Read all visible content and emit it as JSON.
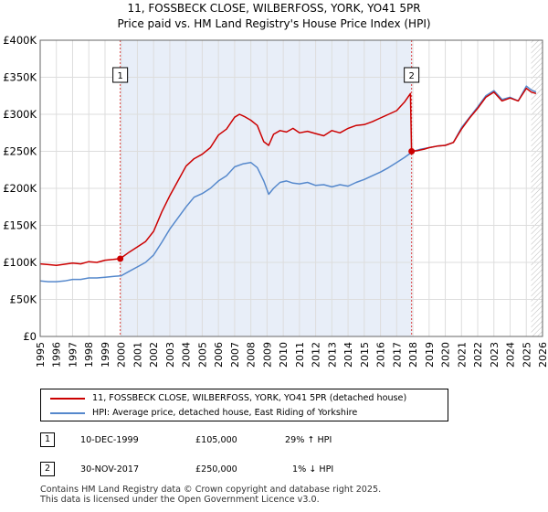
{
  "header": {
    "title_line1": "11, FOSSBECK CLOSE, WILBERFOSS, YORK, YO41 5PR",
    "title_line2": "Price paid vs. HM Land Registry's House Price Index (HPI)"
  },
  "chart_data": {
    "type": "line",
    "xlim": [
      1995,
      2026
    ],
    "ylim": [
      0,
      400000
    ],
    "y_ticks": [
      0,
      50000,
      100000,
      150000,
      200000,
      250000,
      300000,
      350000,
      400000
    ],
    "y_tick_labels": [
      "£0",
      "£50K",
      "£100K",
      "£150K",
      "£200K",
      "£250K",
      "£300K",
      "£350K",
      "£400K"
    ],
    "x_ticks": [
      1995,
      1996,
      1997,
      1998,
      1999,
      2000,
      2001,
      2002,
      2003,
      2004,
      2005,
      2006,
      2007,
      2008,
      2009,
      2010,
      2011,
      2012,
      2013,
      2014,
      2015,
      2016,
      2017,
      2018,
      2019,
      2020,
      2021,
      2022,
      2023,
      2024,
      2025,
      2026
    ],
    "x_tick_labels": [
      "1995",
      "1996",
      "1997",
      "1998",
      "1999",
      "2000",
      "2001",
      "2002",
      "2003",
      "2004",
      "2005",
      "2006",
      "2007",
      "2008",
      "2009",
      "2010",
      "2011",
      "2012",
      "2013",
      "2014",
      "2015",
      "2016",
      "2017",
      "2018",
      "2019",
      "2020",
      "2021",
      "2022",
      "2023",
      "2024",
      "2025",
      "2026"
    ],
    "grid": true,
    "shaded_region": [
      1999.94,
      2017.92
    ],
    "hatched_from": 2025.3,
    "series": [
      {
        "name": "11, FOSSBECK CLOSE, WILBERFOSS, YORK, YO41 5PR (detached house)",
        "color": "#cc0000",
        "x": [
          1995,
          1995.5,
          1996,
          1996.5,
          1997,
          1997.5,
          1998,
          1998.5,
          1999,
          1999.5,
          1999.94,
          2000.5,
          2001,
          2001.5,
          2002,
          2002.5,
          2003,
          2003.5,
          2004,
          2004.5,
          2005,
          2005.5,
          2006,
          2006.5,
          2007,
          2007.3,
          2007.6,
          2008,
          2008.4,
          2008.8,
          2009.1,
          2009.4,
          2009.8,
          2010.2,
          2010.6,
          2011,
          2011.5,
          2012,
          2012.5,
          2013,
          2013.5,
          2014,
          2014.5,
          2015,
          2015.5,
          2016,
          2016.5,
          2017,
          2017.5,
          2017.85,
          2017.92
        ],
        "y": [
          98000,
          97000,
          96000,
          97500,
          99000,
          98000,
          101000,
          100000,
          103000,
          104000,
          105000,
          114000,
          121000,
          128000,
          142000,
          168000,
          190000,
          210000,
          230000,
          240000,
          246000,
          255000,
          272000,
          280000,
          296000,
          300000,
          297000,
          292000,
          285000,
          263000,
          258000,
          273000,
          278000,
          276000,
          281000,
          275000,
          277000,
          274000,
          271000,
          278000,
          275000,
          281000,
          285000,
          286000,
          290000,
          295000,
          300000,
          305000,
          317000,
          328000,
          250000
        ]
      },
      {
        "name": "11, FOSSBECK CLOSE, WILBERFOSS, YORK, YO41 5PR (detached house)",
        "color": "#cc0000",
        "x": [
          2017.92,
          2018.3,
          2018.7,
          2019,
          2019.5,
          2020,
          2020.5,
          2021,
          2021.5,
          2022,
          2022.5,
          2023,
          2023.5,
          2024,
          2024.5,
          2025,
          2025.3,
          2025.6
        ],
        "y": [
          250000,
          251000,
          253000,
          255000,
          257000,
          258000,
          262000,
          280000,
          295000,
          308000,
          323000,
          330000,
          318000,
          322000,
          318000,
          335000,
          330000,
          328000
        ]
      },
      {
        "name": "HPI: Average price, detached house, East Riding of Yorkshire",
        "color": "#5588cc",
        "x": [
          1995,
          1995.5,
          1996,
          1996.5,
          1997,
          1997.5,
          1998,
          1998.5,
          1999,
          1999.5,
          2000,
          2000.5,
          2001,
          2001.5,
          2002,
          2002.5,
          2003,
          2003.5,
          2004,
          2004.5,
          2005,
          2005.5,
          2006,
          2006.5,
          2007,
          2007.5,
          2008,
          2008.4,
          2008.8,
          2009.1,
          2009.4,
          2009.8,
          2010.2,
          2010.6,
          2011,
          2011.5,
          2012,
          2012.5,
          2013,
          2013.5,
          2014,
          2014.5,
          2015,
          2015.5,
          2016,
          2016.5,
          2017,
          2017.5,
          2018,
          2018.5,
          2019,
          2019.5,
          2020,
          2020.5,
          2021,
          2021.5,
          2022,
          2022.5,
          2023,
          2023.5,
          2024,
          2024.5,
          2025,
          2025.3,
          2025.6
        ],
        "y": [
          75000,
          74000,
          74000,
          75000,
          77000,
          77000,
          79000,
          79000,
          80000,
          81000,
          82000,
          88000,
          94000,
          100000,
          110000,
          127000,
          145000,
          160000,
          175000,
          188000,
          193000,
          200000,
          210000,
          217000,
          229000,
          233000,
          235000,
          228000,
          210000,
          192000,
          200000,
          208000,
          210000,
          207000,
          206000,
          208000,
          204000,
          205000,
          202000,
          205000,
          203000,
          208000,
          212000,
          217000,
          222000,
          228000,
          235000,
          242000,
          250000,
          253000,
          255000,
          257000,
          258000,
          262000,
          282000,
          296000,
          310000,
          325000,
          332000,
          320000,
          323000,
          318000,
          338000,
          333000,
          330000
        ]
      }
    ],
    "markers": [
      {
        "x": 1999.94,
        "y": 105000,
        "label": "1"
      },
      {
        "x": 2017.92,
        "y": 250000,
        "label": "2"
      }
    ]
  },
  "legend": {
    "items": [
      {
        "label": "11, FOSSBECK CLOSE, WILBERFOSS, YORK, YO41 5PR (detached house)",
        "color": "#cc0000"
      },
      {
        "label": "HPI: Average price, detached house, East Riding of Yorkshire",
        "color": "#5588cc"
      }
    ]
  },
  "transactions": [
    {
      "num": "1",
      "date": "10-DEC-1999",
      "price": "£105,000",
      "hpi": "29% ↑ HPI"
    },
    {
      "num": "2",
      "date": "30-NOV-2017",
      "price": "£250,000",
      "hpi": "1% ↓ HPI"
    }
  ],
  "footer": {
    "line1": "Contains HM Land Registry data © Crown copyright and database right 2025.",
    "line2": "This data is licensed under the Open Government Licence v3.0."
  }
}
